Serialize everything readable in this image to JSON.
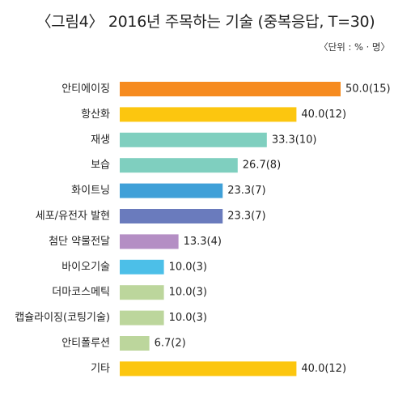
{
  "chart_data": {
    "type": "bar",
    "orientation": "horizontal",
    "title": "〈그림4〉 2016년 주목하는 기술 (중복응답, T=30)",
    "unit_note": "〈단위 : % · 명〉",
    "xlim": [
      0,
      50
    ],
    "categories": [
      "안티에이징",
      "항산화",
      "재생",
      "보습",
      "화이트닝",
      "세포/유전자 발현",
      "첨단 약물전달",
      "바이오기술",
      "더마코스메틱",
      "캡슐라이징(코팅기술)",
      "안티폴루션",
      "기타"
    ],
    "values": [
      50.0,
      40.0,
      33.3,
      26.7,
      23.3,
      23.3,
      13.3,
      10.0,
      10.0,
      10.0,
      6.7,
      40.0
    ],
    "counts": [
      15,
      12,
      10,
      8,
      7,
      7,
      4,
      3,
      3,
      3,
      2,
      12
    ],
    "value_labels": [
      "50.0(15)",
      "40.0(12)",
      "33.3(10)",
      "26.7(8)",
      "23.3(7)",
      "23.3(7)",
      "13.3(4)",
      "10.0(3)",
      "10.0(3)",
      "10.0(3)",
      "6.7(2)",
      "40.0(12)"
    ],
    "colors": [
      "#f68b1f",
      "#fcc60f",
      "#7fcfbf",
      "#7fcfbf",
      "#3fa0d8",
      "#6a7bbd",
      "#b48ec4",
      "#4cbfe8",
      "#bcd69c",
      "#bcd69c",
      "#bcd69c",
      "#fcc60f"
    ],
    "grid": false,
    "legend": "none"
  }
}
